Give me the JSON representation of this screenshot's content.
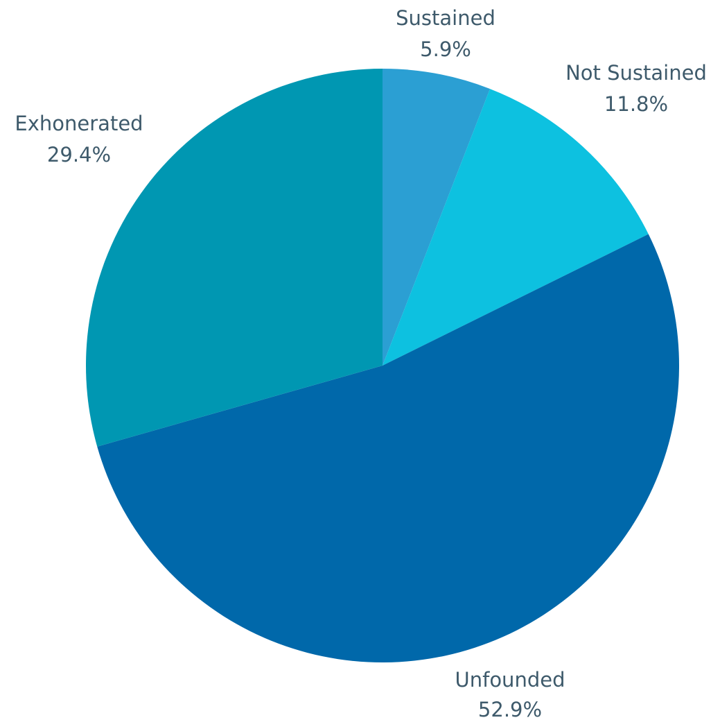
{
  "chart_data": {
    "type": "pie",
    "start_angle_deg": 0,
    "direction": "clockwise",
    "slices": [
      {
        "label": "Sustained",
        "value": 5.9,
        "value_label": "5.9%",
        "color": "#2b9fd3"
      },
      {
        "label": "Not Sustained",
        "value": 11.8,
        "value_label": "11.8%",
        "color": "#0dc1e0"
      },
      {
        "label": "Unfounded",
        "value": 52.9,
        "value_label": "52.9%",
        "color": "#0068aa"
      },
      {
        "label": "Exhonerated",
        "value": 29.4,
        "value_label": "29.4%",
        "color": "#0097b2"
      }
    ],
    "label_color": "#3e5a6b",
    "legend": "none"
  }
}
